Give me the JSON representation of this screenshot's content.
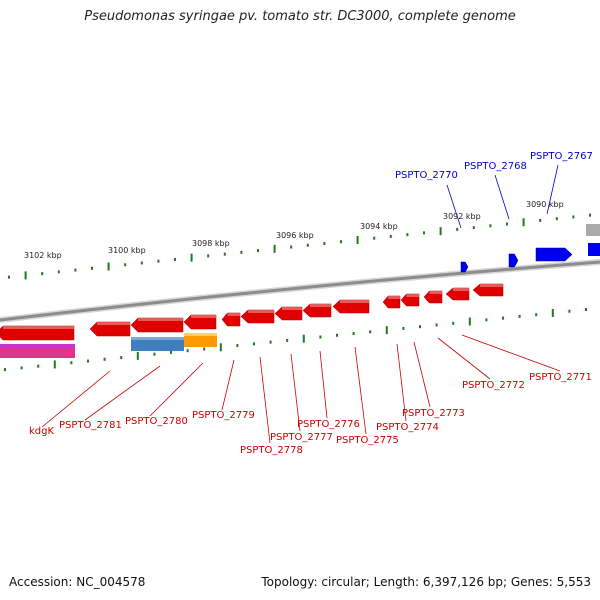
{
  "title": "Pseudomonas syringae pv. tomato str. DC3000, complete genome",
  "footer": {
    "accession": "Accession: NC_004578",
    "summary": "Topology: circular; Length: 6,397,126 bp; Genes: 5,553"
  },
  "colors": {
    "backbone": "#8c8c8c",
    "tick": "#1f7a1f",
    "reverse_strand_label": "#cc0000",
    "forward_strand_label": "#0000cc"
  },
  "position_labels": [
    "3102 kbp",
    "3100 kbp",
    "3098 kbp",
    "3096 kbp",
    "3094 kbp",
    "3092 kbp",
    "3090 kbp"
  ],
  "forward_labels": [
    "PSPTO_2770",
    "PSPTO_2768",
    "PSPTO_2767"
  ],
  "reverse_labels": [
    "kdgK",
    "PSPTO_2781",
    "PSPTO_2780",
    "PSPTO_2779",
    "PSPTO_2778",
    "PSPTO_2777",
    "PSPTO_2776",
    "PSPTO_2775",
    "PSPTO_2774",
    "PSPTO_2773",
    "PSPTO_2772",
    "PSPTO_2771"
  ]
}
